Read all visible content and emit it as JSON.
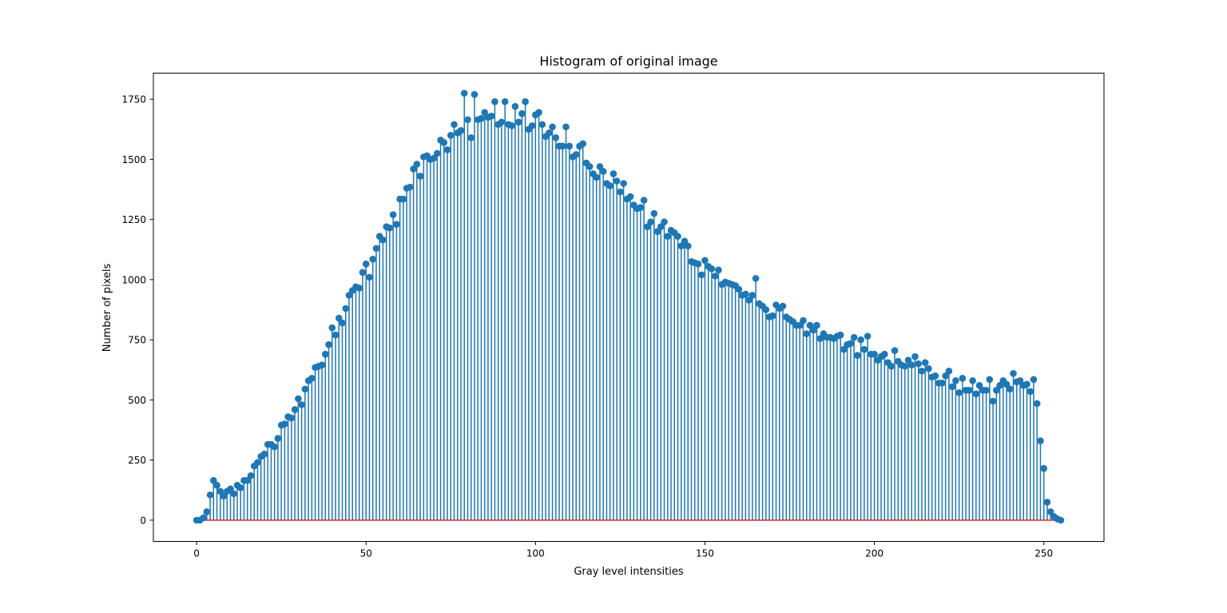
{
  "chart_data": {
    "type": "stem",
    "title": "Histogram of original image",
    "xlabel": "Gray level intensities",
    "ylabel": "Number of pixels",
    "xlim": [
      -12.75,
      267.75
    ],
    "ylim": [
      -88.5,
      1858.5
    ],
    "xticks": [
      0,
      50,
      100,
      150,
      200,
      250
    ],
    "yticks": [
      0,
      250,
      500,
      750,
      1000,
      1250,
      1500,
      1750
    ],
    "grid": false,
    "legend": null,
    "colors": {
      "stem": "#1f77b4",
      "baseline": "#d62728"
    },
    "x_start": 0,
    "values": [
      0,
      0,
      10,
      35,
      105,
      165,
      145,
      120,
      100,
      120,
      130,
      110,
      145,
      135,
      165,
      165,
      185,
      225,
      240,
      265,
      275,
      315,
      315,
      305,
      340,
      395,
      400,
      430,
      425,
      460,
      505,
      480,
      545,
      580,
      590,
      635,
      640,
      645,
      690,
      730,
      800,
      770,
      840,
      820,
      880,
      935,
      955,
      970,
      965,
      1030,
      1065,
      1010,
      1085,
      1130,
      1180,
      1165,
      1220,
      1215,
      1270,
      1230,
      1335,
      1335,
      1380,
      1385,
      1460,
      1480,
      1430,
      1510,
      1515,
      1500,
      1505,
      1525,
      1580,
      1570,
      1540,
      1600,
      1645,
      1610,
      1620,
      1775,
      1665,
      1590,
      1770,
      1665,
      1670,
      1695,
      1675,
      1680,
      1740,
      1645,
      1655,
      1740,
      1645,
      1640,
      1720,
      1655,
      1690,
      1740,
      1625,
      1640,
      1685,
      1695,
      1645,
      1595,
      1610,
      1635,
      1590,
      1555,
      1555,
      1635,
      1555,
      1510,
      1520,
      1555,
      1565,
      1485,
      1470,
      1440,
      1425,
      1470,
      1450,
      1400,
      1390,
      1440,
      1410,
      1365,
      1400,
      1335,
      1345,
      1310,
      1295,
      1300,
      1330,
      1220,
      1240,
      1275,
      1200,
      1220,
      1240,
      1180,
      1205,
      1195,
      1180,
      1140,
      1160,
      1140,
      1075,
      1070,
      1065,
      1020,
      1080,
      1055,
      1045,
      1015,
      1040,
      980,
      990,
      985,
      980,
      975,
      960,
      935,
      940,
      915,
      935,
      1005,
      900,
      890,
      875,
      845,
      850,
      895,
      880,
      890,
      845,
      835,
      825,
      810,
      810,
      830,
      775,
      810,
      790,
      810,
      755,
      775,
      760,
      760,
      755,
      765,
      770,
      710,
      730,
      735,
      760,
      685,
      750,
      710,
      765,
      690,
      690,
      665,
      680,
      690,
      655,
      640,
      705,
      660,
      645,
      640,
      665,
      645,
      680,
      650,
      620,
      655,
      630,
      595,
      600,
      570,
      570,
      600,
      620,
      555,
      580,
      530,
      590,
      540,
      540,
      580,
      525,
      560,
      540,
      540,
      585,
      495,
      540,
      560,
      580,
      565,
      545,
      610,
      575,
      580,
      560,
      565,
      535,
      585,
      485,
      330,
      215,
      75,
      35,
      15,
      5,
      0
    ]
  }
}
